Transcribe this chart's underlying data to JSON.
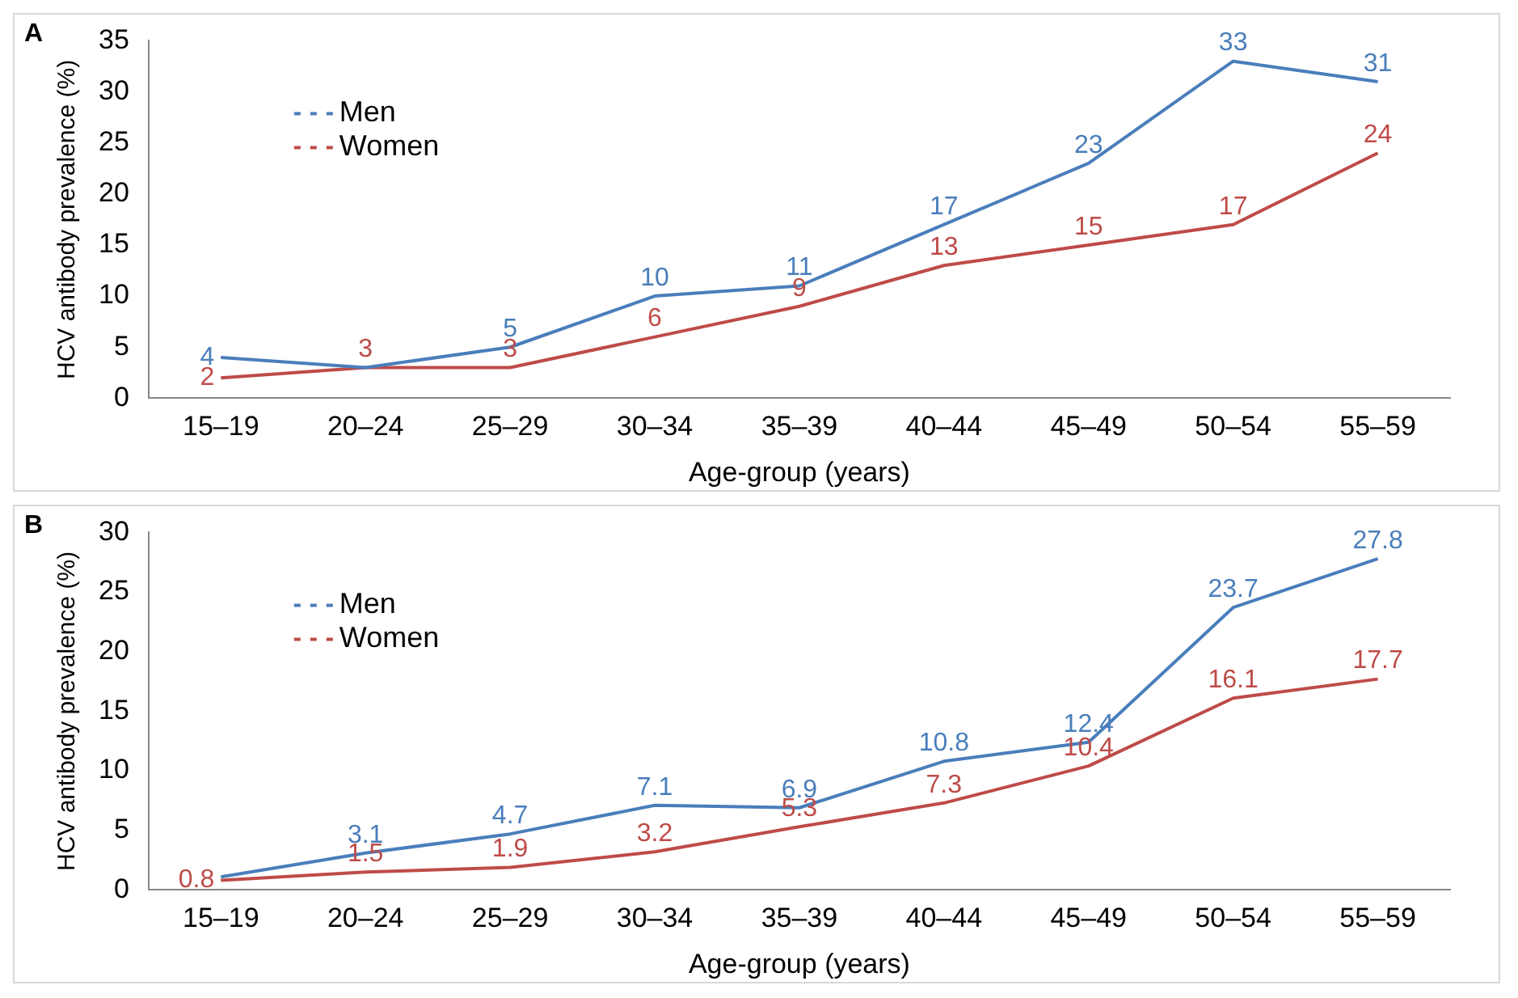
{
  "chart_data": [
    {
      "type": "line",
      "title": "A",
      "xlabel": "Age-group (years)",
      "ylabel": "HCV antibody prevalence (%)",
      "categories": [
        "15–19",
        "20–24",
        "25–29",
        "30–34",
        "35–39",
        "40–44",
        "45–49",
        "50–54",
        "55–59"
      ],
      "series": [
        {
          "name": "Men",
          "color": "#4a7ebb",
          "values": [
            4,
            3,
            5,
            10,
            11,
            17,
            23,
            33,
            31
          ],
          "value_labels": [
            "4",
            null,
            "5",
            "10",
            "11",
            "17",
            "23",
            "33",
            "31"
          ]
        },
        {
          "name": "Women",
          "color": "#be4b48",
          "values": [
            2,
            3,
            3,
            6,
            9,
            13,
            15,
            17,
            24
          ],
          "value_labels": [
            "2",
            "3",
            "3",
            "6",
            "9",
            "13",
            "15",
            "17",
            "24"
          ]
        }
      ],
      "ylim": [
        0,
        35
      ],
      "yticks": [
        0,
        5,
        10,
        15,
        20,
        25,
        30,
        35
      ],
      "grid": false,
      "legend": "top left"
    },
    {
      "type": "line",
      "title": "B",
      "xlabel": "Age-group (years)",
      "ylabel": "HCV antibody prevalence (%)",
      "categories": [
        "15–19",
        "20–24",
        "25–29",
        "30–34",
        "35–39",
        "40–44",
        "45–49",
        "50–54",
        "55–59"
      ],
      "series": [
        {
          "name": "Men",
          "color": "#4a7ebb",
          "values": [
            1.1,
            3.1,
            4.7,
            7.1,
            6.9,
            10.8,
            12.4,
            23.7,
            27.8
          ],
          "value_labels": [
            null,
            "3.1",
            "4.7",
            "7.1",
            "6.9",
            "10.8",
            "12.4",
            "23.7",
            "27.8"
          ]
        },
        {
          "name": "Women",
          "color": "#be4b48",
          "values": [
            0.8,
            1.5,
            1.9,
            3.2,
            5.3,
            7.3,
            10.4,
            16.1,
            17.7
          ],
          "value_labels": [
            "0.8",
            "1.5",
            "1.9",
            "3.2",
            "5.3",
            "7.3",
            "10.4",
            "16.1",
            "17.7"
          ]
        }
      ],
      "ylim": [
        0,
        30
      ],
      "yticks": [
        0,
        5,
        10,
        15,
        20,
        25,
        30
      ],
      "grid": false,
      "legend": "top left"
    }
  ]
}
